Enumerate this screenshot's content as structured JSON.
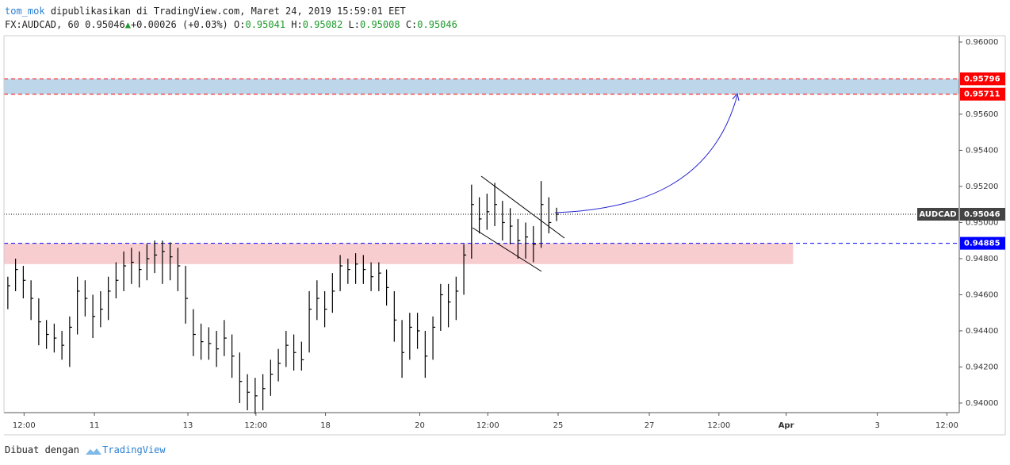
{
  "header": {
    "author": "tom_mok",
    "published": "dipublikasikan di TradingView.com, Maret 24, 2019 15:59:01 EET",
    "symbol": "FX:AUDCAD, 60 0.95046",
    "change": "+0.00026 (+0.03%)",
    "ohlc": [
      {
        "label": "O:",
        "value": "0.95041"
      },
      {
        "label": "H:",
        "value": "0.95082"
      },
      {
        "label": "L:",
        "value": "0.95008"
      },
      {
        "label": "C:",
        "value": "0.95046"
      }
    ]
  },
  "footer": {
    "made_with": "Dibuat dengan",
    "brand": "TradingView"
  },
  "chart_data": {
    "type": "ohlc",
    "ylim": [
      0.93947,
      0.96035
    ],
    "yticks": [
      {
        "value": 0.96,
        "label": "0.96000"
      },
      {
        "value": 0.956,
        "label": "0.95600"
      },
      {
        "value": 0.954,
        "label": "0.95400"
      },
      {
        "value": 0.952,
        "label": "0.95200"
      },
      {
        "value": 0.95,
        "label": "0.95000"
      },
      {
        "value": 0.948,
        "label": "0.94800"
      },
      {
        "value": 0.946,
        "label": "0.94600"
      },
      {
        "value": 0.944,
        "label": "0.94400"
      },
      {
        "value": 0.942,
        "label": "0.94200"
      },
      {
        "value": 0.94,
        "label": "0.94000"
      }
    ],
    "xlim": [
      0,
      123.6
    ],
    "xticks": [
      {
        "value": 2.6,
        "label": "12:00"
      },
      {
        "value": 11.7,
        "label": "11"
      },
      {
        "value": 23.8,
        "label": "13"
      },
      {
        "value": 32.6,
        "label": "12:00"
      },
      {
        "value": 41.6,
        "label": "18"
      },
      {
        "value": 53.8,
        "label": "20"
      },
      {
        "value": 62.6,
        "label": "12:00"
      },
      {
        "value": 71.7,
        "label": "25"
      },
      {
        "value": 83.5,
        "label": "27"
      },
      {
        "value": 92.5,
        "label": "12:00"
      },
      {
        "value": 101.2,
        "label": "Apr"
      },
      {
        "value": 113,
        "label": "3"
      },
      {
        "value": 122,
        "label": "12:00"
      }
    ],
    "series": [
      {
        "name": "AUDCAD",
        "color": "#000000",
        "high": [
          0.947,
          0.948,
          0.9476,
          0.9468,
          0.9458,
          0.9446,
          0.9444,
          0.944,
          0.9448,
          0.947,
          0.9468,
          0.946,
          0.9462,
          0.947,
          0.9478,
          0.9484,
          0.9486,
          0.9484,
          0.9488,
          0.949,
          0.949,
          0.9489,
          0.9486,
          0.9476,
          0.9452,
          0.9444,
          0.9442,
          0.944,
          0.9446,
          0.9438,
          0.9428,
          0.9416,
          0.9414,
          0.9416,
          0.9424,
          0.943,
          0.944,
          0.9438,
          0.9434,
          0.9462,
          0.9468,
          0.9462,
          0.9472,
          0.9482,
          0.948,
          0.9483,
          0.9482,
          0.9478,
          0.9478,
          0.9474,
          0.9462,
          0.9446,
          0.945,
          0.945,
          0.944,
          0.9448,
          0.9466,
          0.9466,
          0.947,
          0.9488,
          0.9521,
          0.9514,
          0.9516,
          0.9522,
          0.9512,
          0.9508,
          0.9502,
          0.95,
          0.9498,
          0.9523,
          0.9514,
          0.95082
        ],
        "low": [
          0.9452,
          0.9462,
          0.9458,
          0.9446,
          0.9432,
          0.943,
          0.9428,
          0.9424,
          0.942,
          0.9438,
          0.9448,
          0.9436,
          0.9442,
          0.9446,
          0.9458,
          0.9462,
          0.9466,
          0.9464,
          0.9468,
          0.9472,
          0.9466,
          0.9468,
          0.9462,
          0.9444,
          0.9426,
          0.9424,
          0.9424,
          0.942,
          0.9426,
          0.9414,
          0.94,
          0.9396,
          0.9394,
          0.9396,
          0.9404,
          0.9412,
          0.942,
          0.9418,
          0.9418,
          0.9428,
          0.9446,
          0.9442,
          0.945,
          0.9462,
          0.9466,
          0.9466,
          0.9466,
          0.9462,
          0.9462,
          0.9454,
          0.9434,
          0.9414,
          0.9424,
          0.943,
          0.9414,
          0.9424,
          0.944,
          0.9442,
          0.9446,
          0.946,
          0.948,
          0.9494,
          0.9496,
          0.9498,
          0.949,
          0.9488,
          0.948,
          0.948,
          0.9478,
          0.9486,
          0.9494,
          0.95008
        ],
        "close": [
          0.9465,
          0.9474,
          0.9468,
          0.9458,
          0.9445,
          0.9438,
          0.9436,
          0.9432,
          0.9442,
          0.9462,
          0.9458,
          0.9448,
          0.9452,
          0.9462,
          0.9468,
          0.9476,
          0.9478,
          0.9474,
          0.948,
          0.9482,
          0.9484,
          0.9481,
          0.9476,
          0.9458,
          0.9438,
          0.9434,
          0.9433,
          0.943,
          0.9436,
          0.9426,
          0.9412,
          0.9406,
          0.9404,
          0.9408,
          0.9416,
          0.9422,
          0.9432,
          0.9428,
          0.9424,
          0.9452,
          0.9458,
          0.9452,
          0.9462,
          0.9476,
          0.9474,
          0.9477,
          0.9474,
          0.947,
          0.9472,
          0.9464,
          0.9446,
          0.9428,
          0.9442,
          0.944,
          0.9426,
          0.9442,
          0.946,
          0.9456,
          0.9462,
          0.9482,
          0.951,
          0.9502,
          0.9506,
          0.951,
          0.95,
          0.9498,
          0.949,
          0.9492,
          0.9488,
          0.951,
          0.95,
          0.95046
        ]
      }
    ],
    "last": 0.95046,
    "levels": [
      {
        "value": 0.95796,
        "color": "#ff0000"
      },
      {
        "value": 0.95711,
        "color": "#ff0000"
      },
      {
        "value": 0.94885,
        "color": "#0000ff"
      }
    ],
    "zones": [
      {
        "from": 0.95711,
        "to": 0.95796,
        "color": "#bed6ea",
        "end": 123.6
      },
      {
        "from": 0.9477,
        "to": 0.94885,
        "color": "#f7cdd0",
        "end": 102.1
      }
    ]
  }
}
